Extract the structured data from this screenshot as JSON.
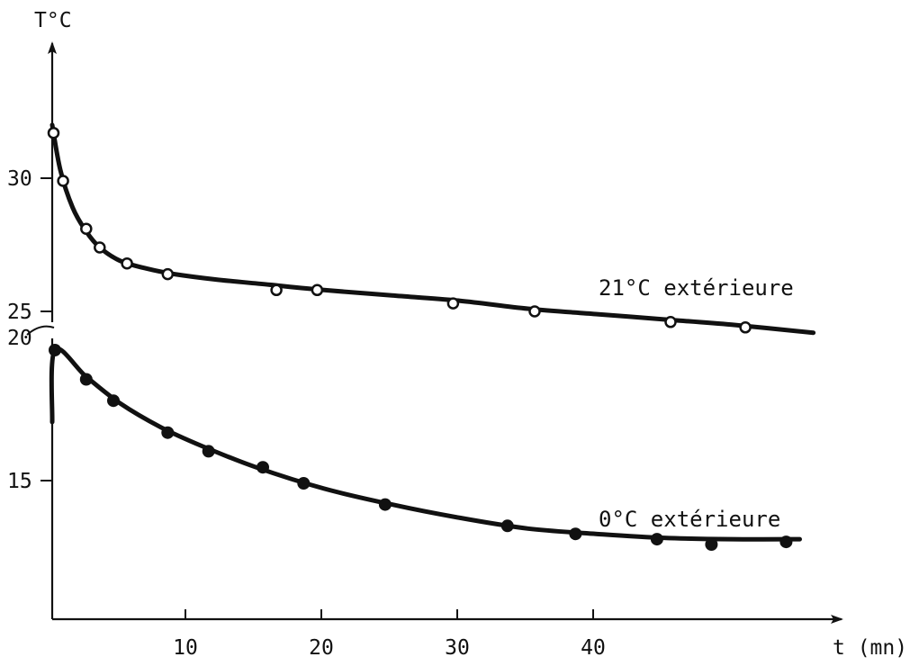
{
  "chart_data": {
    "type": "scatter",
    "xlabel": "t (mn)",
    "ylabel": "T°C",
    "xlim": [
      0,
      56
    ],
    "upper_ylim": [
      25,
      32
    ],
    "lower_ylim": [
      12,
      20
    ],
    "x_ticks": [
      10,
      20,
      30,
      40
    ],
    "y_ticks_upper": [
      30,
      25
    ],
    "y_ticks_lower": [
      20,
      15
    ],
    "x_tick_labels": [
      "10",
      "20",
      "30",
      "40"
    ],
    "y_tick_labels": {
      "t30": "30",
      "t25": "25",
      "t20": "20",
      "t15": "15"
    },
    "axis_break": true,
    "grid": false,
    "colors": {
      "ink": "#111111",
      "background": "#ffffff"
    },
    "series": [
      {
        "name": "21°C extérieure",
        "panel": "upper",
        "marker": "open-circle",
        "points": [
          [
            0.1,
            31.7
          ],
          [
            0.8,
            29.9
          ],
          [
            2.5,
            28.1
          ],
          [
            3.5,
            27.4
          ],
          [
            5.5,
            26.8
          ],
          [
            8.5,
            26.4
          ],
          [
            16.5,
            25.8
          ],
          [
            19.5,
            25.8
          ],
          [
            29.5,
            25.3
          ],
          [
            35.5,
            25.0
          ],
          [
            45.5,
            24.6
          ],
          [
            51,
            24.4
          ]
        ],
        "curve": [
          [
            0,
            32.0
          ],
          [
            0.6,
            30.3
          ],
          [
            1.5,
            28.9
          ],
          [
            2.5,
            28.0
          ],
          [
            3.5,
            27.4
          ],
          [
            5,
            26.9
          ],
          [
            7,
            26.6
          ],
          [
            9,
            26.4
          ],
          [
            12,
            26.2
          ],
          [
            16,
            26.0
          ],
          [
            20,
            25.8
          ],
          [
            25,
            25.6
          ],
          [
            30,
            25.4
          ],
          [
            35,
            25.1
          ],
          [
            40,
            24.9
          ],
          [
            45,
            24.7
          ],
          [
            50,
            24.5
          ],
          [
            56,
            24.2
          ]
        ]
      },
      {
        "name": "0°C extérieure",
        "panel": "lower",
        "marker": "filled-circle",
        "points": [
          [
            0.2,
            19.9
          ],
          [
            2.5,
            18.8
          ],
          [
            4.5,
            18.0
          ],
          [
            8.5,
            16.8
          ],
          [
            11.5,
            16.1
          ],
          [
            15.5,
            15.5
          ],
          [
            18.5,
            14.9
          ],
          [
            24.5,
            14.1
          ],
          [
            33.5,
            13.3
          ],
          [
            38.5,
            13.0
          ],
          [
            44.5,
            12.8
          ],
          [
            48.5,
            12.6
          ],
          [
            54,
            12.7
          ]
        ],
        "curve": [
          [
            0,
            17.2
          ],
          [
            0.2,
            19.9
          ],
          [
            2.5,
            18.9
          ],
          [
            5,
            17.9
          ],
          [
            8,
            17.0
          ],
          [
            11,
            16.3
          ],
          [
            15,
            15.5
          ],
          [
            20,
            14.7
          ],
          [
            25,
            14.1
          ],
          [
            30,
            13.6
          ],
          [
            35,
            13.2
          ],
          [
            40,
            13.0
          ],
          [
            45,
            12.85
          ],
          [
            50,
            12.8
          ],
          [
            55,
            12.8
          ]
        ]
      }
    ]
  }
}
